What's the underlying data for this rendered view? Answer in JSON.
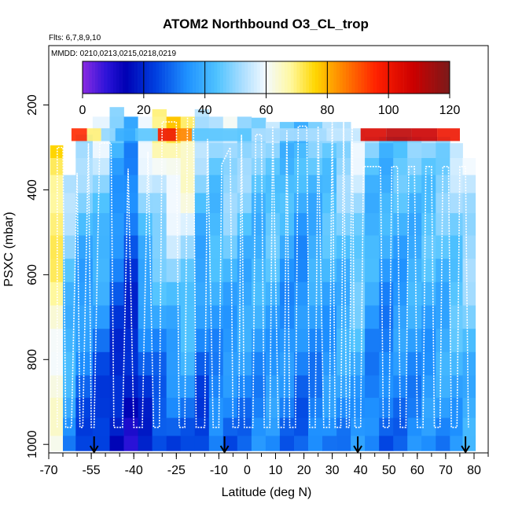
{
  "chart_data": {
    "type": "heatmap",
    "title": "ATOM2 Northbound O3_CL_trop",
    "flights_note": "Flts: 6,7,8,9,10",
    "dates_note": "MMDD: 0210,0213,0215,0218,0219",
    "xlabel": "Latitude (deg N)",
    "ylabel": "PSXC (mbar)",
    "xlim": [
      -70,
      85
    ],
    "ylim": [
      1020,
      60
    ],
    "x_ticks": [
      {
        "value": -70,
        "label": "-70"
      },
      {
        "value": -55,
        "label": "-55"
      },
      {
        "value": -40,
        "label": "-40"
      },
      {
        "value": -25,
        "label": "-25"
      },
      {
        "value": -10,
        "label": "-10"
      },
      {
        "value": 0,
        "label": "0"
      },
      {
        "value": 10,
        "label": "10"
      },
      {
        "value": 20,
        "label": "20"
      },
      {
        "value": 30,
        "label": "30"
      },
      {
        "value": 40,
        "label": "40"
      },
      {
        "value": 50,
        "label": "50"
      },
      {
        "value": 60,
        "label": "60"
      },
      {
        "value": 70,
        "label": "70"
      },
      {
        "value": 80,
        "label": "80"
      }
    ],
    "y_ticks": [
      {
        "value": 200,
        "label": "200"
      },
      {
        "value": 400,
        "label": "400"
      },
      {
        "value": 600,
        "label": "600"
      },
      {
        "value": 800,
        "label": "800"
      },
      {
        "value": 1000,
        "label": "1000"
      }
    ],
    "colorbar": {
      "min": 0,
      "max": 120,
      "ticks": [
        {
          "value": 0,
          "label": "0"
        },
        {
          "value": 20,
          "label": "20"
        },
        {
          "value": 40,
          "label": "40"
        },
        {
          "value": 60,
          "label": "60"
        },
        {
          "value": 80,
          "label": "80"
        },
        {
          "value": 100,
          "label": "100"
        },
        {
          "value": 120,
          "label": "120"
        }
      ],
      "stops": [
        {
          "v": 0,
          "c": "#8a2be2"
        },
        {
          "v": 8,
          "c": "#2a12d8"
        },
        {
          "v": 14,
          "c": "#0000b4"
        },
        {
          "v": 24,
          "c": "#0040e0"
        },
        {
          "v": 34,
          "c": "#1e90ff"
        },
        {
          "v": 44,
          "c": "#4fc3ff"
        },
        {
          "v": 52,
          "c": "#a8ddff"
        },
        {
          "v": 60,
          "c": "#f4faff"
        },
        {
          "v": 68,
          "c": "#fff8a0"
        },
        {
          "v": 76,
          "c": "#ffd700"
        },
        {
          "v": 84,
          "c": "#ff8c00"
        },
        {
          "v": 96,
          "c": "#ff2000"
        },
        {
          "v": 108,
          "c": "#cc0000"
        },
        {
          "v": 120,
          "c": "#7a1a1a"
        }
      ]
    },
    "sonde_markers_lat": [
      -54,
      -8,
      39,
      77
    ],
    "pressure_levels": [
      210,
      245,
      275,
      305,
      345,
      385,
      430,
      480,
      535,
      590,
      645,
      700,
      755,
      810,
      865,
      915,
      960,
      1000
    ],
    "profiles": [
      {
        "lat": -67,
        "top": 295,
        "low": 60,
        "high": 75
      },
      {
        "lat": -63,
        "top": 350,
        "low": 35,
        "high": 55
      },
      {
        "lat": -58,
        "top": 270,
        "low": 25,
        "high": 55
      },
      {
        "lat": -51,
        "top": 225,
        "low": 20,
        "high": 62
      },
      {
        "lat": -46,
        "top": 205,
        "low": 15,
        "high": 48
      },
      {
        "lat": -41,
        "top": 225,
        "low": 12,
        "high": 40
      },
      {
        "lat": -36,
        "top": 225,
        "low": 18,
        "high": 66
      },
      {
        "lat": -31,
        "top": 210,
        "low": 22,
        "high": 72
      },
      {
        "lat": -26,
        "top": 215,
        "low": 25,
        "high": 78
      },
      {
        "lat": -21,
        "top": 215,
        "low": 28,
        "high": 76
      },
      {
        "lat": -16,
        "top": 210,
        "low": 22,
        "high": 58
      },
      {
        "lat": -11,
        "top": 215,
        "low": 30,
        "high": 52
      },
      {
        "lat": -6,
        "top": 225,
        "low": 28,
        "high": 60
      },
      {
        "lat": -1,
        "top": 225,
        "low": 30,
        "high": 55
      },
      {
        "lat": 4,
        "top": 230,
        "low": 32,
        "high": 50
      },
      {
        "lat": 9,
        "top": 240,
        "low": 33,
        "high": 52
      },
      {
        "lat": 14,
        "top": 240,
        "low": 30,
        "high": 46
      },
      {
        "lat": 19,
        "top": 240,
        "low": 28,
        "high": 44
      },
      {
        "lat": 24,
        "top": 240,
        "low": 30,
        "high": 48
      },
      {
        "lat": 29,
        "top": 240,
        "low": 32,
        "high": 50
      },
      {
        "lat": 34,
        "top": 240,
        "low": 33,
        "high": 55
      },
      {
        "lat": 39,
        "top": 250,
        "low": 35,
        "high": 60
      },
      {
        "lat": 44,
        "top": 275,
        "low": 30,
        "high": 48
      },
      {
        "lat": 49,
        "top": 275,
        "low": 28,
        "high": 45
      },
      {
        "lat": 54,
        "top": 275,
        "low": 30,
        "high": 47
      },
      {
        "lat": 59,
        "top": 275,
        "low": 32,
        "high": 48
      },
      {
        "lat": 64,
        "top": 275,
        "low": 33,
        "high": 50
      },
      {
        "lat": 69,
        "top": 275,
        "low": 34,
        "high": 52
      },
      {
        "lat": 74,
        "top": 285,
        "low": 36,
        "high": 56
      },
      {
        "lat": 78,
        "top": 310,
        "low": 38,
        "high": 60
      }
    ],
    "upper_tropo_strip": [
      {
        "lat": -59,
        "value": 95
      },
      {
        "lat": -54,
        "value": 70
      },
      {
        "lat": -49,
        "value": 50
      },
      {
        "lat": -44,
        "value": 40
      },
      {
        "lat": -35,
        "value": 45
      },
      {
        "lat": -28,
        "value": 100
      },
      {
        "lat": -22,
        "value": 85
      },
      {
        "lat": -17,
        "value": 45
      },
      {
        "lat": 20,
        "value": 52
      },
      {
        "lat": 36,
        "value": 55
      },
      {
        "lat": 44,
        "value": 105
      },
      {
        "lat": 54,
        "value": 110
      },
      {
        "lat": 62,
        "value": 108
      },
      {
        "lat": 72,
        "value": 100
      }
    ],
    "flight_track": [
      {
        "lat": -67,
        "p": 960
      },
      {
        "lat": -67,
        "p": 300
      },
      {
        "lat": -65,
        "p": 300
      },
      {
        "lat": -64,
        "p": 960
      },
      {
        "lat": -62,
        "p": 960
      },
      {
        "lat": -60,
        "p": 360
      },
      {
        "lat": -59,
        "p": 960
      },
      {
        "lat": -58,
        "p": 960
      },
      {
        "lat": -56,
        "p": 290
      },
      {
        "lat": -55,
        "p": 960
      },
      {
        "lat": -54,
        "p": 960
      },
      {
        "lat": -52,
        "p": 290
      },
      {
        "lat": -48,
        "p": 290
      },
      {
        "lat": -47,
        "p": 960
      },
      {
        "lat": -44,
        "p": 960
      },
      {
        "lat": -42,
        "p": 350
      },
      {
        "lat": -40,
        "p": 960
      },
      {
        "lat": -37,
        "p": 960
      },
      {
        "lat": -35,
        "p": 310
      },
      {
        "lat": -33,
        "p": 960
      },
      {
        "lat": -31,
        "p": 960
      },
      {
        "lat": -30,
        "p": 240
      },
      {
        "lat": -25,
        "p": 240
      },
      {
        "lat": -24,
        "p": 960
      },
      {
        "lat": -22,
        "p": 960
      },
      {
        "lat": -21,
        "p": 200
      },
      {
        "lat": -19,
        "p": 200
      },
      {
        "lat": -18,
        "p": 960
      },
      {
        "lat": -15,
        "p": 960
      },
      {
        "lat": -14,
        "p": 280
      },
      {
        "lat": -12,
        "p": 960
      },
      {
        "lat": -10,
        "p": 960
      },
      {
        "lat": -9,
        "p": 340
      },
      {
        "lat": -6,
        "p": 300
      },
      {
        "lat": -5,
        "p": 960
      },
      {
        "lat": -3,
        "p": 960
      },
      {
        "lat": -2,
        "p": 270
      },
      {
        "lat": -1,
        "p": 960
      },
      {
        "lat": 2,
        "p": 960
      },
      {
        "lat": 3,
        "p": 270
      },
      {
        "lat": 5,
        "p": 270
      },
      {
        "lat": 6,
        "p": 960
      },
      {
        "lat": 8,
        "p": 960
      },
      {
        "lat": 9,
        "p": 250
      },
      {
        "lat": 11,
        "p": 960
      },
      {
        "lat": 13,
        "p": 960
      },
      {
        "lat": 14,
        "p": 260
      },
      {
        "lat": 15,
        "p": 960
      },
      {
        "lat": 17,
        "p": 960
      },
      {
        "lat": 18,
        "p": 250
      },
      {
        "lat": 21,
        "p": 250
      },
      {
        "lat": 22,
        "p": 960
      },
      {
        "lat": 24,
        "p": 960
      },
      {
        "lat": 25,
        "p": 250
      },
      {
        "lat": 27,
        "p": 960
      },
      {
        "lat": 29,
        "p": 960
      },
      {
        "lat": 30,
        "p": 220
      },
      {
        "lat": 31,
        "p": 960
      },
      {
        "lat": 33,
        "p": 960
      },
      {
        "lat": 34,
        "p": 240
      },
      {
        "lat": 35,
        "p": 960
      },
      {
        "lat": 36,
        "p": 960
      },
      {
        "lat": 37,
        "p": 210
      },
      {
        "lat": 38,
        "p": 960
      },
      {
        "lat": 40,
        "p": 960
      },
      {
        "lat": 41,
        "p": 345
      },
      {
        "lat": 47,
        "p": 345
      },
      {
        "lat": 48,
        "p": 960
      },
      {
        "lat": 50,
        "p": 960
      },
      {
        "lat": 51,
        "p": 345
      },
      {
        "lat": 53,
        "p": 345
      },
      {
        "lat": 54,
        "p": 960
      },
      {
        "lat": 56,
        "p": 960
      },
      {
        "lat": 57,
        "p": 345
      },
      {
        "lat": 59,
        "p": 345
      },
      {
        "lat": 60,
        "p": 960
      },
      {
        "lat": 62,
        "p": 960
      },
      {
        "lat": 63,
        "p": 345
      },
      {
        "lat": 65,
        "p": 345
      },
      {
        "lat": 66,
        "p": 960
      },
      {
        "lat": 68,
        "p": 960
      },
      {
        "lat": 69,
        "p": 345
      },
      {
        "lat": 71,
        "p": 345
      },
      {
        "lat": 72,
        "p": 960
      },
      {
        "lat": 74,
        "p": 960
      },
      {
        "lat": 75,
        "p": 345
      },
      {
        "lat": 77,
        "p": 345
      },
      {
        "lat": 78,
        "p": 960
      }
    ]
  }
}
